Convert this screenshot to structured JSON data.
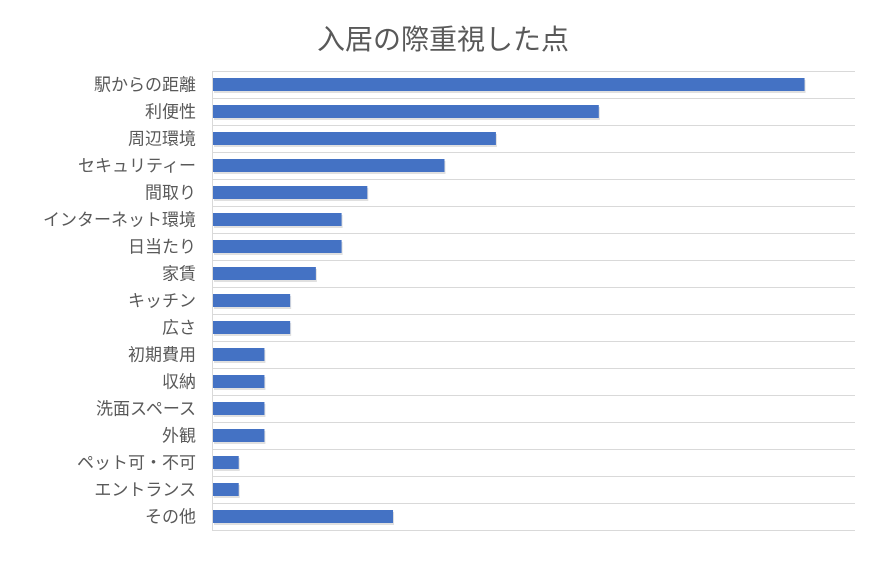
{
  "chart_data": {
    "type": "bar",
    "orientation": "horizontal",
    "title": "入居の際重視した点",
    "categories": [
      "駅からの距離",
      "利便性",
      "周辺環境",
      "セキュリティー",
      "間取り",
      "インターネット環境",
      "日当たり",
      "家賃",
      "キッチン",
      "広さ",
      "初期費用",
      "収納",
      "洗面スペース",
      "外観",
      "ペット可・不可",
      "エントランス",
      "その他"
    ],
    "values": [
      23,
      15,
      11,
      9,
      6,
      5,
      5,
      4,
      3,
      3,
      2,
      2,
      2,
      2,
      1,
      1,
      7
    ],
    "xlim": [
      0,
      25
    ],
    "grid": true,
    "legend": "none",
    "bar_color": "#4472c4"
  }
}
